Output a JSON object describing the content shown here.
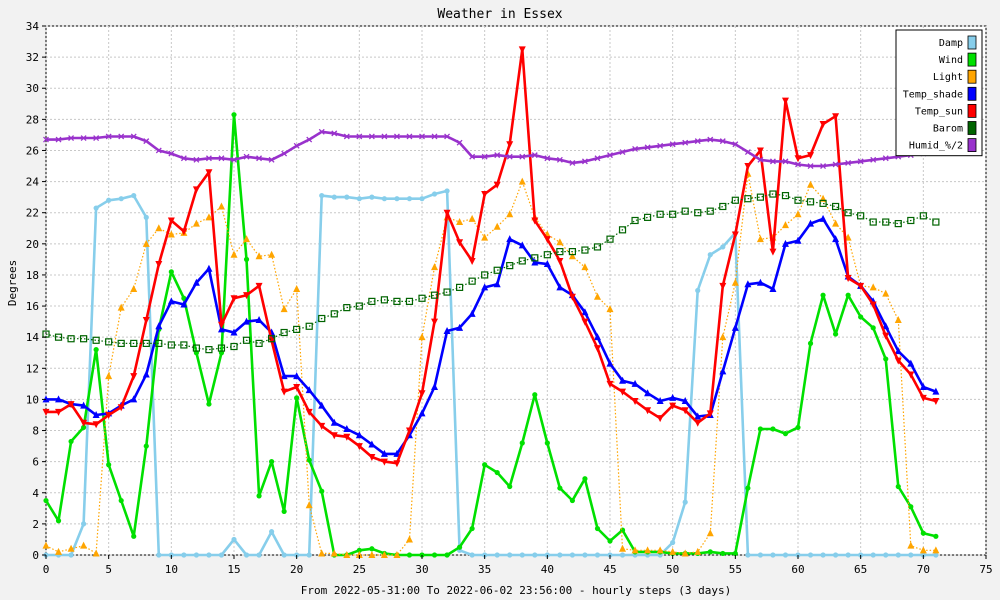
{
  "chart_data": {
    "type": "line",
    "title": "Weather in Essex",
    "xlabel": "From 2022-05-31:00 To 2022-06-02 23:56:00 - hourly steps (3 days)",
    "ylabel": "Degrees",
    "xlim": [
      0,
      75
    ],
    "ylim": [
      0,
      34
    ],
    "xticks": [
      0,
      5,
      10,
      15,
      20,
      25,
      30,
      35,
      40,
      45,
      50,
      55,
      60,
      65,
      70,
      75
    ],
    "yticks": [
      0,
      2,
      4,
      6,
      8,
      10,
      12,
      14,
      16,
      18,
      20,
      22,
      24,
      26,
      28,
      30,
      32,
      34
    ],
    "grid": true,
    "legend_position": "top-right",
    "x": [
      0,
      1,
      2,
      3,
      4,
      5,
      6,
      7,
      8,
      9,
      10,
      11,
      12,
      13,
      14,
      15,
      16,
      17,
      18,
      19,
      20,
      21,
      22,
      23,
      24,
      25,
      26,
      27,
      28,
      29,
      30,
      31,
      32,
      33,
      34,
      35,
      36,
      37,
      38,
      39,
      40,
      41,
      42,
      43,
      44,
      45,
      46,
      47,
      48,
      49,
      50,
      51,
      52,
      53,
      54,
      55,
      56,
      57,
      58,
      59,
      60,
      61,
      62,
      63,
      64,
      65,
      66,
      67,
      68,
      69,
      70,
      71
    ],
    "series": [
      {
        "name": "Damp",
        "color": "#87ceeb",
        "style": "line",
        "marker": "circle",
        "values": [
          0,
          0,
          0,
          2,
          22.3,
          22.8,
          22.9,
          23.1,
          21.7,
          0,
          0,
          0,
          0,
          0,
          0,
          1,
          0,
          0,
          1.5,
          0,
          0,
          0,
          23.1,
          23.0,
          23.0,
          22.9,
          23.0,
          22.9,
          22.9,
          22.9,
          22.9,
          23.2,
          23.4,
          0.3,
          0,
          0,
          0,
          0,
          0,
          0,
          0,
          0,
          0,
          0,
          0,
          0,
          0,
          0,
          0,
          0,
          0.8,
          3.4,
          17,
          19.3,
          19.8,
          20.7,
          0,
          0,
          0,
          0,
          0,
          0,
          0,
          0,
          0,
          0,
          0,
          0,
          0,
          0,
          0,
          0
        ]
      },
      {
        "name": "Wind",
        "color": "#00e000",
        "style": "line",
        "marker": "circle",
        "values": [
          3.5,
          2.2,
          7.3,
          8.2,
          13.2,
          5.8,
          3.5,
          1.2,
          7.0,
          14.5,
          18.2,
          16.5,
          13,
          9.7,
          13,
          28.3,
          19,
          3.8,
          6.0,
          2.8,
          10.1,
          6.1,
          4.1,
          0,
          0,
          0.3,
          0.4,
          0.1,
          0,
          0,
          0,
          0,
          0,
          0.5,
          1.7,
          5.8,
          5.3,
          4.4,
          7.2,
          10.3,
          7.2,
          4.3,
          3.5,
          4.9,
          1.7,
          0.9,
          1.6,
          0.2,
          0.2,
          0.2,
          0.1,
          0.1,
          0.1,
          0.2,
          0.1,
          0.1,
          4.3,
          8.1,
          8.1,
          7.8,
          8.2,
          13.6,
          16.7,
          14.2,
          16.7,
          15.3,
          14.6,
          12.6,
          4.4,
          3.1,
          1.4,
          1.2
        ]
      },
      {
        "name": "Light",
        "color": "#ffa500",
        "style": "dotted",
        "marker": "triangle-up",
        "values": [
          0.6,
          0.2,
          0.4,
          0.6,
          0.1,
          11.5,
          15.9,
          17.1,
          20,
          21.0,
          20.6,
          20.7,
          21.3,
          21.7,
          22.4,
          19.3,
          20.3,
          19.2,
          19.3,
          15.8,
          17.1,
          3.2,
          0.1,
          0.1,
          0,
          0,
          0,
          0,
          0,
          1.0,
          14,
          18.5,
          21.7,
          21.4,
          21.6,
          20.4,
          21.1,
          21.9,
          24.0,
          21.7,
          20.6,
          20.1,
          19.2,
          18.5,
          16.6,
          15.8,
          0.4,
          0.3,
          0.3,
          0.3,
          0.2,
          0.1,
          0.2,
          1.4,
          14,
          17.5,
          24.5,
          20.3,
          20.4,
          21.2,
          21.9,
          23.8,
          22.9,
          21.3,
          20.4,
          17.3,
          17.2,
          16.8,
          15.1,
          0.6,
          0.3,
          0.3
        ]
      },
      {
        "name": "Temp_shade",
        "color": "#0000ff",
        "style": "line",
        "marker": "triangle-up",
        "values": [
          10,
          10,
          9.7,
          9.6,
          9.0,
          9.1,
          9.6,
          10,
          11.6,
          14.7,
          16.3,
          16.1,
          17.5,
          18.4,
          14.5,
          14.3,
          15,
          15.1,
          14.3,
          11.5,
          11.5,
          10.6,
          9.6,
          8.5,
          8.1,
          7.7,
          7.1,
          6.5,
          6.5,
          7.7,
          9.1,
          10.8,
          14.4,
          14.6,
          15.5,
          17.2,
          17.4,
          20.3,
          19.9,
          18.8,
          18.7,
          17.2,
          16.7,
          15.6,
          14,
          12.3,
          11.2,
          11,
          10.4,
          9.9,
          10.1,
          9.9,
          8.9,
          9.0,
          11.8,
          14.6,
          17.4,
          17.5,
          17.1,
          20,
          20.2,
          21.3,
          21.6,
          20.3,
          17.9,
          17.3,
          16.3,
          14.7,
          13.1,
          12.3,
          10.8,
          10.5
        ]
      },
      {
        "name": "Temp_sun",
        "color": "#ff0000",
        "style": "line",
        "marker": "triangle-down",
        "values": [
          9.2,
          9.2,
          9.7,
          8.5,
          8.4,
          9.0,
          9.5,
          11.5,
          15.1,
          18.7,
          21.5,
          20.8,
          23.5,
          24.6,
          14.8,
          16.5,
          16.7,
          17.3,
          13.8,
          10.5,
          10.8,
          9.2,
          8.3,
          7.7,
          7.6,
          7,
          6.3,
          6.0,
          5.9,
          8.0,
          10.4,
          15,
          22,
          20.1,
          18.9,
          23.2,
          23.8,
          26.4,
          32.5,
          21.5,
          20.3,
          18.9,
          16.6,
          15,
          13.3,
          11.0,
          10.5,
          9.9,
          9.3,
          8.8,
          9.6,
          9.3,
          8.5,
          9.1,
          17.3,
          20.6,
          25,
          26,
          19.5,
          29.2,
          25.5,
          25.7,
          27.7,
          28.2,
          17.8,
          17.3,
          16.1,
          14.1,
          12.5,
          11.6,
          10.1,
          9.9
        ]
      },
      {
        "name": "Barom",
        "color": "#006400",
        "style": "dotted",
        "marker": "square",
        "values": [
          14.2,
          14,
          13.9,
          13.9,
          13.8,
          13.7,
          13.6,
          13.6,
          13.6,
          13.6,
          13.5,
          13.5,
          13.3,
          13.2,
          13.3,
          13.4,
          13.8,
          13.6,
          13.9,
          14.3,
          14.5,
          14.7,
          15.2,
          15.5,
          15.9,
          16,
          16.3,
          16.4,
          16.3,
          16.3,
          16.5,
          16.7,
          16.9,
          17.2,
          17.6,
          18,
          18.3,
          18.6,
          18.9,
          19.1,
          19.3,
          19.5,
          19.5,
          19.6,
          19.8,
          20.3,
          20.9,
          21.5,
          21.7,
          21.9,
          21.9,
          22.1,
          22.0,
          22.1,
          22.4,
          22.8,
          22.9,
          23.0,
          23.2,
          23.1,
          22.8,
          22.7,
          22.6,
          22.4,
          22.0,
          21.8,
          21.4,
          21.4,
          21.3,
          21.5,
          21.8,
          21.4
        ]
      },
      {
        "name": "Humid_%/2",
        "color": "#9932cc",
        "style": "line",
        "marker": "x",
        "values": [
          26.7,
          26.7,
          26.8,
          26.8,
          26.8,
          26.9,
          26.9,
          26.9,
          26.6,
          26.0,
          25.8,
          25.5,
          25.4,
          25.5,
          25.5,
          25.4,
          25.6,
          25.5,
          25.4,
          25.8,
          26.3,
          26.7,
          27.2,
          27.1,
          26.9,
          26.9,
          26.9,
          26.9,
          26.9,
          26.9,
          26.9,
          26.9,
          26.9,
          26.5,
          25.6,
          25.6,
          25.7,
          25.6,
          25.6,
          25.7,
          25.5,
          25.4,
          25.2,
          25.3,
          25.5,
          25.7,
          25.9,
          26.1,
          26.2,
          26.3,
          26.4,
          26.5,
          26.6,
          26.7,
          26.6,
          26.4,
          25.9,
          25.4,
          25.3,
          25.3,
          25.1,
          25.0,
          25.0,
          25.1,
          25.2,
          25.3,
          25.4,
          25.5,
          25.6,
          25.7,
          25.8,
          25.9
        ]
      }
    ]
  }
}
